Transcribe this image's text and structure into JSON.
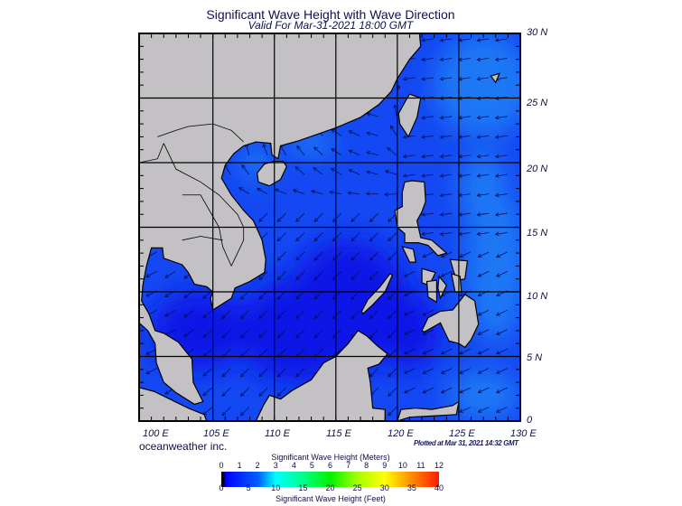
{
  "header": {
    "title": "Significant Wave Height with Wave Direction",
    "subtitle": "Valid For Mar-31-2021 18:00 GMT"
  },
  "map": {
    "lon_range": [
      99,
      130
    ],
    "lat_range": [
      0,
      30
    ],
    "lat_labels": [
      "30 N",
      "25 N",
      "20 N",
      "15 N",
      "10 N",
      "5 N",
      "0"
    ],
    "lon_labels": [
      "100 E",
      "105 E",
      "110 E",
      "115 E",
      "120 E",
      "125 E",
      "130 E"
    ],
    "colors": {
      "land": "#c3c1c4",
      "coast": "#000000",
      "sea_low": "#0a14e6",
      "sea_mid": "#1448f2",
      "sea_high": "#1a78f5",
      "arrow": "#00105a"
    }
  },
  "footer": {
    "brand": "oceanweather inc.",
    "plotted": "Plotted at Mar 31, 2021 14:32 GMT"
  },
  "colorbar": {
    "title_meters": "Significant Wave Height (Meters)",
    "title_feet": "Significant Wave Height (Feet)",
    "meters_ticks": [
      "0",
      "1",
      "2",
      "3",
      "4",
      "5",
      "6",
      "7",
      "8",
      "9",
      "10",
      "11",
      "12"
    ],
    "feet_ticks": [
      "0",
      "5",
      "10",
      "15",
      "20",
      "25",
      "30",
      "35",
      "40"
    ]
  }
}
